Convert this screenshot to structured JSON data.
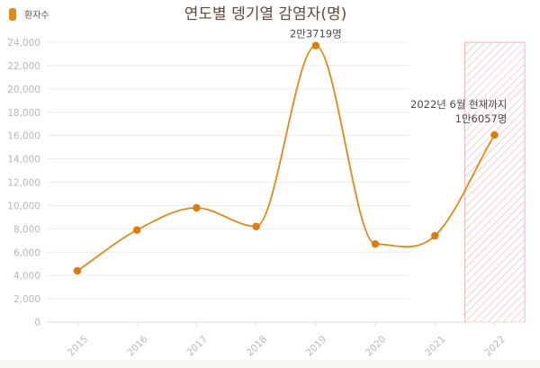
{
  "legend": {
    "label": "환자수",
    "color": "#e08a13"
  },
  "chart_data": {
    "type": "line",
    "title": "연도별 뎅기열 감염자(명)",
    "xlabel": "",
    "ylabel": "",
    "categories": [
      "2015",
      "2016",
      "2017",
      "2018",
      "2019",
      "2020",
      "2021",
      "2022"
    ],
    "series": [
      {
        "name": "환자수",
        "values": [
          4400,
          7900,
          9800,
          8200,
          23719,
          6700,
          7400,
          16057
        ]
      }
    ],
    "ylim": [
      0,
      24000
    ],
    "yticks": [
      0,
      2000,
      4000,
      6000,
      8000,
      10000,
      12000,
      14000,
      16000,
      18000,
      20000,
      22000,
      24000
    ],
    "grid": true,
    "legend_position": "top-left",
    "highlight_category": "2022",
    "annotations": [
      {
        "category": "2019",
        "lines": [
          "2만3719명"
        ]
      },
      {
        "category": "2022",
        "lines": [
          "2022년 6월 현재까지",
          "1만6057명"
        ]
      }
    ],
    "colors": {
      "line": "#e08a13",
      "point": "#e07a0c",
      "grid": "#ececec",
      "axis_text": "#b8b8b8",
      "title": "#5b4a3e",
      "highlight": "#e8a3a3"
    }
  }
}
